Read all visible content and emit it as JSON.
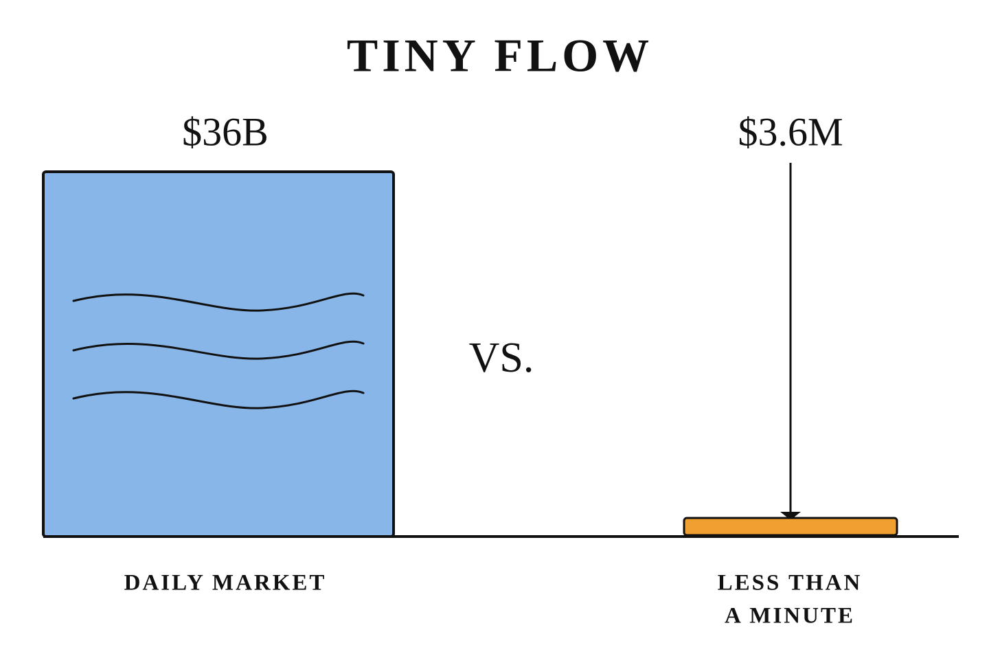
{
  "title": "TINY FLOW",
  "left": {
    "value": "$36B",
    "label": [
      "DAILY MARKET"
    ]
  },
  "separator": "VS.",
  "right": {
    "value": "$3.6M",
    "label": [
      "LESS THAN",
      "A MINUTE"
    ]
  }
}
